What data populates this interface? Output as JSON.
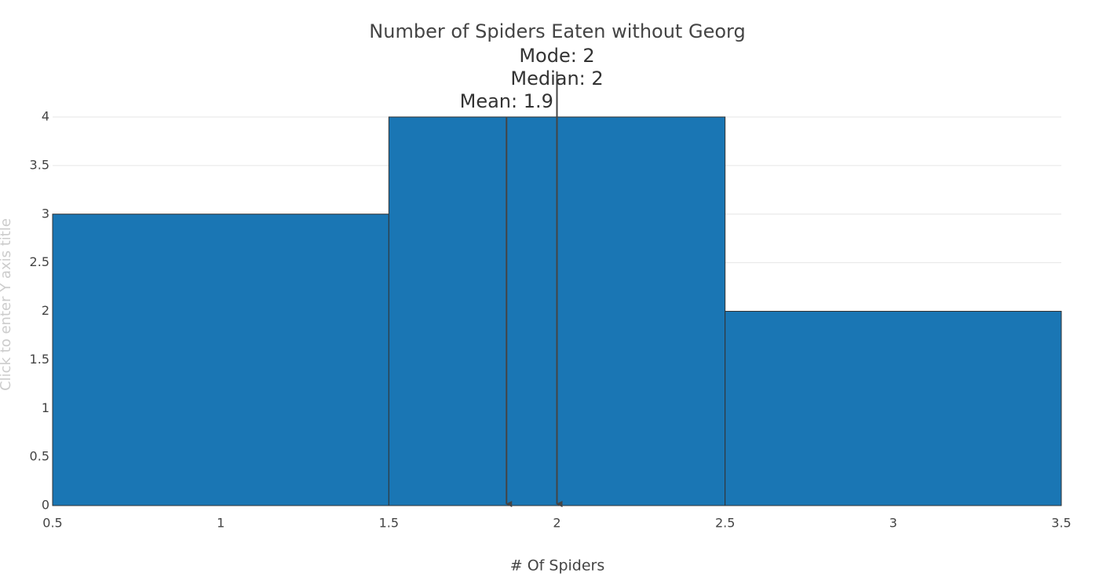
{
  "chart_data": {
    "type": "histogram",
    "title": "Number of Spiders Eaten without Georg",
    "x_label": "# Of Spiders",
    "y_label": "Click to enter Y axis title",
    "bins": [
      0.5,
      1.5,
      2.5,
      3.5
    ],
    "counts": [
      3,
      4,
      2
    ],
    "color": "#1a76b4",
    "edge_color": "#333333",
    "xlim": [
      0.5,
      3.5
    ],
    "xticks": [
      0.5,
      1,
      1.5,
      2,
      2.5,
      3,
      3.5
    ],
    "ylim": [
      0,
      4.2
    ],
    "yticks": [
      0,
      0.5,
      1,
      1.5,
      2,
      2.5,
      3,
      3.5,
      4
    ],
    "grid": true,
    "annotations": [
      {
        "text": "Mode: 2",
        "x": 2
      },
      {
        "text": "Median: 2",
        "x": 2
      },
      {
        "text": "Mean: 1.9",
        "x": 1.85
      }
    ]
  }
}
